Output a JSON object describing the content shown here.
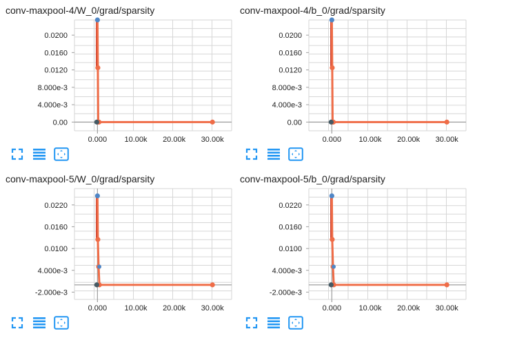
{
  "colors": {
    "series_recent": "#ef6c47",
    "series_early": "#c62f1f",
    "marker_dark": "#455a64",
    "marker_blue": "#4f86c6",
    "grid": "#d6d6d6",
    "axis": "#9e9e9e",
    "icon": "#2196f3"
  },
  "toolbar_icons": [
    "fullscreen-icon",
    "data-list-icon",
    "fit-domain-icon"
  ],
  "chart_data": [
    {
      "type": "line",
      "title": "conv-maxpool-4/W_0/grad/sparsity",
      "xlim": [
        -6000,
        35000
      ],
      "ylim": [
        -0.002,
        0.0235
      ],
      "x_ticks": [
        0,
        10000,
        20000,
        30000
      ],
      "x_tick_labels": [
        "0.000",
        "10.00k",
        "20.00k",
        "30.00k"
      ],
      "y_ticks": [
        0,
        0.004,
        0.008,
        0.012,
        0.016,
        0.02
      ],
      "y_tick_labels": [
        "0.00",
        "4.000e-3",
        "8.000e-3",
        "0.0120",
        "0.0160",
        "0.0200"
      ],
      "grid": true,
      "series": [
        {
          "x": [
            0,
            100,
            200,
            400,
            30000
          ],
          "y": [
            0.0235,
            0.0125,
            0.0,
            0.0,
            0.0
          ]
        }
      ]
    },
    {
      "type": "line",
      "title": "conv-maxpool-4/b_0/grad/sparsity",
      "xlim": [
        -6000,
        35000
      ],
      "ylim": [
        -0.002,
        0.0235
      ],
      "x_ticks": [
        0,
        10000,
        20000,
        30000
      ],
      "x_tick_labels": [
        "0.000",
        "10.00k",
        "20.00k",
        "30.00k"
      ],
      "y_ticks": [
        0,
        0.004,
        0.008,
        0.012,
        0.016,
        0.02
      ],
      "y_tick_labels": [
        "0.00",
        "4.000e-3",
        "8.000e-3",
        "0.0120",
        "0.0160",
        "0.0200"
      ],
      "grid": true,
      "series": [
        {
          "x": [
            0,
            100,
            200,
            400,
            30000
          ],
          "y": [
            0.0235,
            0.0125,
            0.0,
            0.0,
            0.0
          ]
        }
      ]
    },
    {
      "type": "line",
      "title": "conv-maxpool-5/W_0/grad/sparsity",
      "xlim": [
        -6000,
        35000
      ],
      "ylim": [
        -0.004,
        0.0265
      ],
      "x_ticks": [
        0,
        10000,
        20000,
        30000
      ],
      "x_tick_labels": [
        "0.000",
        "10.00k",
        "20.00k",
        "30.00k"
      ],
      "y_ticks": [
        -0.002,
        0.004,
        0.01,
        0.016,
        0.022
      ],
      "y_tick_labels": [
        "-2.000e-3",
        "4.000e-3",
        "0.0100",
        "0.0160",
        "0.0220"
      ],
      "grid": true,
      "series": [
        {
          "x": [
            0,
            100,
            300,
            500,
            30000
          ],
          "y": [
            0.0245,
            0.0125,
            0.005,
            0.0,
            0.0
          ]
        }
      ]
    },
    {
      "type": "line",
      "title": "conv-maxpool-5/b_0/grad/sparsity",
      "xlim": [
        -6000,
        35000
      ],
      "ylim": [
        -0.004,
        0.0265
      ],
      "x_ticks": [
        0,
        10000,
        20000,
        30000
      ],
      "x_tick_labels": [
        "0.000",
        "10.00k",
        "20.00k",
        "30.00k"
      ],
      "y_ticks": [
        -0.002,
        0.004,
        0.01,
        0.016,
        0.022
      ],
      "y_tick_labels": [
        "-2.000e-3",
        "4.000e-3",
        "0.0100",
        "0.0160",
        "0.0220"
      ],
      "grid": true,
      "series": [
        {
          "x": [
            0,
            100,
            300,
            500,
            30000
          ],
          "y": [
            0.0245,
            0.0125,
            0.005,
            0.0,
            0.0
          ]
        }
      ]
    }
  ]
}
